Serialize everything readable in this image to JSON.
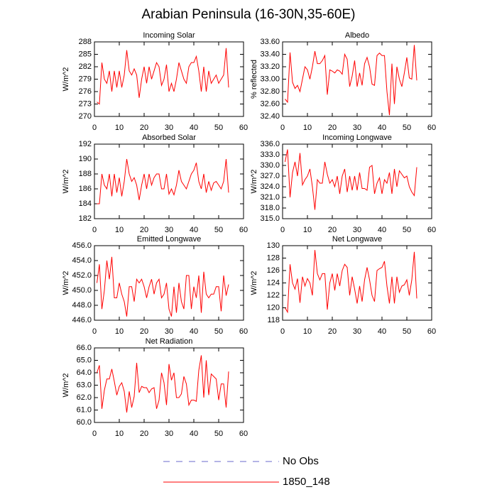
{
  "title": "Arabian Peninsula (16-30N,35-60E)",
  "legend": [
    {
      "name": "No Obs",
      "color": "#6a6acd",
      "dash": true
    },
    {
      "name": "1850_148",
      "color": "#ff0000",
      "dash": false
    }
  ],
  "chart_data": [
    {
      "type": "line",
      "title": "Incoming Solar",
      "ylabel": "W/m^2",
      "color": "#ff0000",
      "xlim": [
        0,
        60
      ],
      "xticks": [
        0,
        10,
        20,
        30,
        40,
        50,
        60
      ],
      "ylim": [
        270,
        288
      ],
      "yticks": [
        270,
        273,
        276,
        279,
        282,
        285,
        288
      ],
      "x": [
        1,
        2,
        3,
        4,
        5,
        6,
        7,
        8,
        9,
        10,
        11,
        12,
        13,
        14,
        15,
        16,
        17,
        18,
        19,
        20,
        21,
        22,
        23,
        24,
        25,
        26,
        27,
        28,
        29,
        30,
        31,
        32,
        33,
        34,
        35,
        36,
        37,
        38,
        39,
        40,
        41,
        42,
        43,
        44,
        45,
        46,
        47,
        48,
        49,
        50,
        51,
        52,
        53,
        54
      ],
      "values": [
        273.5,
        273,
        283,
        279,
        278,
        281,
        276,
        281,
        277,
        281,
        277,
        280,
        286,
        281,
        280,
        281.5,
        280,
        274.5,
        279,
        282,
        278,
        282,
        279,
        281,
        283,
        282,
        277.5,
        279,
        282.5,
        276,
        278,
        276,
        279,
        283,
        281,
        279,
        278,
        282,
        283,
        283,
        284.5,
        281,
        276,
        282,
        276,
        281,
        278,
        279,
        280,
        278,
        279,
        280,
        286.5,
        277
      ]
    },
    {
      "type": "line",
      "title": "Albedo",
      "ylabel": "% reflected",
      "color": "#ff0000",
      "xlim": [
        0,
        60
      ],
      "xticks": [
        0,
        10,
        20,
        30,
        40,
        50,
        60
      ],
      "ylim": [
        32.4,
        33.6
      ],
      "yticks": [
        {
          "value": 32.4,
          "label": "32.40"
        },
        {
          "value": 32.6,
          "label": "32.60"
        },
        {
          "value": 32.8,
          "label": "32.80"
        },
        {
          "value": 33.0,
          "label": "33.00"
        },
        {
          "value": 33.2,
          "label": "33.20"
        },
        {
          "value": 33.4,
          "label": "33.40"
        },
        {
          "value": 33.6,
          "label": "33.60"
        }
      ],
      "x": [
        1,
        2,
        3,
        4,
        5,
        6,
        7,
        8,
        9,
        10,
        11,
        12,
        13,
        14,
        15,
        16,
        17,
        18,
        19,
        20,
        21,
        22,
        23,
        24,
        25,
        26,
        27,
        28,
        29,
        30,
        31,
        32,
        33,
        34,
        35,
        36,
        37,
        38,
        39,
        40,
        41,
        42,
        43,
        44,
        45,
        46,
        47,
        48,
        49,
        50,
        51,
        52,
        53,
        54
      ],
      "values": [
        32.68,
        32.63,
        33.43,
        32.95,
        32.85,
        32.9,
        32.8,
        33,
        33.2,
        33.15,
        33,
        33.2,
        33.45,
        33.25,
        33.25,
        33.3,
        33.38,
        32.75,
        33.15,
        33.13,
        33.1,
        33.15,
        33.13,
        33.08,
        33.4,
        33.32,
        32.88,
        33.05,
        33.3,
        32.88,
        33.1,
        32.9,
        33.25,
        33.35,
        33.2,
        32.92,
        32.9,
        33.38,
        33.42,
        33.38,
        33.38,
        32.8,
        32.42,
        33.25,
        32.6,
        33.2,
        33,
        32.88,
        33.1,
        33.35,
        33.02,
        33,
        33.55,
        32.98
      ]
    },
    {
      "type": "line",
      "title": "Absorbed Solar",
      "ylabel": "W/m^2",
      "color": "#ff0000",
      "xlim": [
        0,
        60
      ],
      "xticks": [
        0,
        10,
        20,
        30,
        40,
        50,
        60
      ],
      "ylim": [
        182,
        192
      ],
      "yticks": [
        182,
        184,
        186,
        188,
        190,
        192
      ],
      "x": [
        1,
        2,
        3,
        4,
        5,
        6,
        7,
        8,
        9,
        10,
        11,
        12,
        13,
        14,
        15,
        16,
        17,
        18,
        19,
        20,
        21,
        22,
        23,
        24,
        25,
        26,
        27,
        28,
        29,
        30,
        31,
        32,
        33,
        34,
        35,
        36,
        37,
        38,
        39,
        40,
        41,
        42,
        43,
        44,
        45,
        46,
        47,
        48,
        49,
        50,
        51,
        52,
        53,
        54
      ],
      "values": [
        184,
        184,
        188,
        186.5,
        186,
        188,
        185,
        188,
        185.5,
        187.5,
        185,
        187,
        190,
        188,
        187,
        187.5,
        186.5,
        184.5,
        186.5,
        188,
        186,
        188,
        186.5,
        187.5,
        188,
        188,
        186,
        186,
        188,
        185.3,
        186,
        185.2,
        186.5,
        188.5,
        187,
        186.5,
        186,
        187,
        188,
        188.5,
        189.5,
        187,
        186,
        188,
        185.5,
        187,
        185.8,
        186.8,
        187,
        186.5,
        186,
        187,
        190,
        185.5
      ]
    },
    {
      "type": "line",
      "title": "Incoming Longwave",
      "ylabel": "W/m^2",
      "color": "#ff0000",
      "xlim": [
        0,
        60
      ],
      "xticks": [
        0,
        10,
        20,
        30,
        40,
        50,
        60
      ],
      "ylim": [
        315,
        336
      ],
      "yticks": [
        {
          "value": 315,
          "label": "315.0"
        },
        {
          "value": 318,
          "label": "318.0"
        },
        {
          "value": 321,
          "label": "321.0"
        },
        {
          "value": 324,
          "label": "324.0"
        },
        {
          "value": 327,
          "label": "327.0"
        },
        {
          "value": 330,
          "label": "330.0"
        },
        {
          "value": 333,
          "label": "333.0"
        },
        {
          "value": 336,
          "label": "336.0"
        }
      ],
      "x": [
        1,
        2,
        3,
        4,
        5,
        6,
        7,
        8,
        9,
        10,
        11,
        12,
        13,
        14,
        15,
        16,
        17,
        18,
        19,
        20,
        21,
        22,
        23,
        24,
        25,
        26,
        27,
        28,
        29,
        30,
        31,
        32,
        33,
        34,
        35,
        36,
        37,
        38,
        39,
        40,
        41,
        42,
        43,
        44,
        45,
        46,
        47,
        48,
        49,
        50,
        51,
        52,
        53,
        54
      ],
      "values": [
        331,
        334.5,
        321,
        328,
        331,
        327,
        333.5,
        324.5,
        326,
        327,
        329,
        324,
        317.5,
        326,
        325,
        325,
        331,
        327.5,
        325,
        326,
        324,
        327,
        322,
        327,
        329,
        322.5,
        327,
        323,
        327,
        323,
        328,
        323.5,
        323.5,
        323,
        329.5,
        330,
        322,
        325,
        326.5,
        322,
        326,
        325,
        328,
        322,
        329,
        324,
        328.5,
        327.5,
        326.5,
        327,
        324,
        322.5,
        321.5,
        329.5
      ]
    },
    {
      "type": "line",
      "title": "Emitted Longwave",
      "ylabel": "W/m^2",
      "color": "#ff0000",
      "xlim": [
        0,
        60
      ],
      "xticks": [
        0,
        10,
        20,
        30,
        40,
        50,
        60
      ],
      "ylim": [
        446,
        456
      ],
      "yticks": [
        {
          "value": 446,
          "label": "446.0"
        },
        {
          "value": 448,
          "label": "448.0"
        },
        {
          "value": 450,
          "label": "450.0"
        },
        {
          "value": 452,
          "label": "452.0"
        },
        {
          "value": 454,
          "label": "454.0"
        },
        {
          "value": 456,
          "label": "456.0"
        }
      ],
      "x": [
        1,
        2,
        3,
        4,
        5,
        6,
        7,
        8,
        9,
        10,
        11,
        12,
        13,
        14,
        15,
        16,
        17,
        18,
        19,
        20,
        21,
        22,
        23,
        24,
        25,
        26,
        27,
        28,
        29,
        30,
        31,
        32,
        33,
        34,
        35,
        36,
        37,
        38,
        39,
        40,
        41,
        42,
        43,
        44,
        45,
        46,
        47,
        48,
        49,
        50,
        51,
        52,
        53,
        54
      ],
      "values": [
        451,
        453.5,
        447.5,
        450,
        454,
        451.5,
        454.5,
        449,
        449,
        451,
        449.5,
        448.5,
        446.5,
        450.5,
        450.5,
        448.5,
        451.5,
        451,
        451.5,
        450.5,
        449,
        450.5,
        451.5,
        449.5,
        451,
        451.5,
        449,
        449.5,
        451,
        447.5,
        446.5,
        450.5,
        447,
        451,
        448.5,
        447.5,
        452,
        452,
        447.5,
        450.5,
        449,
        452,
        447,
        452.5,
        449.5,
        449,
        449.5,
        449.5,
        450.5,
        450.5,
        447.2,
        452,
        449.3,
        450.8
      ]
    },
    {
      "type": "line",
      "title": "Net Longwave",
      "ylabel": "W/m^2",
      "color": "#ff0000",
      "xlim": [
        0,
        60
      ],
      "xticks": [
        0,
        10,
        20,
        30,
        40,
        50,
        60
      ],
      "ylim": [
        118,
        130
      ],
      "yticks": [
        118,
        120,
        122,
        124,
        126,
        128,
        130
      ],
      "x": [
        1,
        2,
        3,
        4,
        5,
        6,
        7,
        8,
        9,
        10,
        11,
        12,
        13,
        14,
        15,
        16,
        17,
        18,
        19,
        20,
        21,
        22,
        23,
        24,
        25,
        26,
        27,
        28,
        29,
        30,
        31,
        32,
        33,
        34,
        35,
        36,
        37,
        38,
        39,
        40,
        41,
        42,
        43,
        44,
        45,
        46,
        47,
        48,
        49,
        50,
        51,
        52,
        53,
        54
      ],
      "values": [
        120,
        119.3,
        127,
        124,
        123,
        124.7,
        120.8,
        125,
        123.5,
        124.7,
        124,
        122,
        129.3,
        125.5,
        124.5,
        125.5,
        125.5,
        119.7,
        124,
        125.5,
        122.8,
        125.5,
        123.5,
        126,
        127,
        126.5,
        122,
        125,
        123,
        120.7,
        123.5,
        121,
        124.5,
        126.5,
        124.5,
        122,
        121,
        126,
        126.3,
        126.5,
        127.5,
        123.5,
        120.7,
        125,
        120.7,
        125,
        122.5,
        123.5,
        123.7,
        124.5,
        122,
        124.5,
        129,
        121.5
      ]
    },
    {
      "type": "line",
      "title": "Net Radiation",
      "ylabel": "W/m^2",
      "color": "#ff0000",
      "xlim": [
        0,
        60
      ],
      "xticks": [
        0,
        10,
        20,
        30,
        40,
        50,
        60
      ],
      "ylim": [
        60,
        66
      ],
      "yticks": [
        {
          "value": 60,
          "label": "60.0"
        },
        {
          "value": 61,
          "label": "61.0"
        },
        {
          "value": 62,
          "label": "62.0"
        },
        {
          "value": 63,
          "label": "63.0"
        },
        {
          "value": 64,
          "label": "64.0"
        },
        {
          "value": 65,
          "label": "65.0"
        },
        {
          "value": 66,
          "label": "66.0"
        }
      ],
      "x": [
        1,
        2,
        3,
        4,
        5,
        6,
        7,
        8,
        9,
        10,
        11,
        12,
        13,
        14,
        15,
        16,
        17,
        18,
        19,
        20,
        21,
        22,
        23,
        24,
        25,
        26,
        27,
        28,
        29,
        30,
        31,
        32,
        33,
        34,
        35,
        36,
        37,
        38,
        39,
        40,
        41,
        42,
        43,
        44,
        45,
        46,
        47,
        48,
        49,
        50,
        51,
        52,
        53,
        54
      ],
      "values": [
        64,
        64.6,
        61.1,
        62.6,
        63.5,
        63.5,
        64.3,
        63.3,
        62.2,
        62.9,
        63.2,
        62.5,
        60.8,
        62.5,
        61.2,
        62.1,
        64.8,
        62.4,
        62.9,
        62.8,
        62.8,
        62.4,
        62.7,
        62.8,
        61.1,
        61.8,
        64,
        63.2,
        61.4,
        64.7,
        63.4,
        64,
        62,
        62,
        62.3,
        63.7,
        63.1,
        61.4,
        61.8,
        61.8,
        61.7,
        64.2,
        65.4,
        62,
        65,
        62.2,
        63.9,
        63.7,
        63.5,
        61.8,
        63.1,
        63.1,
        61.2,
        64.1
      ]
    }
  ]
}
